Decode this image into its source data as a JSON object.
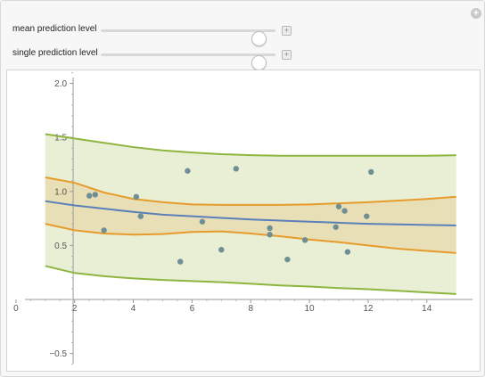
{
  "controls": {
    "mean": {
      "label": "mean prediction level",
      "value": 0.9
    },
    "single": {
      "label": "single prediction level",
      "value": 0.9
    },
    "plus_symbol": "+"
  },
  "colors": {
    "single_band": "#8db53f",
    "single_fill": "#e8efd5",
    "mean_band": "#e69b2c",
    "mean_fill": "#e9dfb6",
    "fit_line": "#5b7fb8",
    "points": "#6f8f94"
  },
  "chart_data": {
    "type": "scatter",
    "title": "",
    "xlabel": "",
    "ylabel": "",
    "xlim": [
      -0.3,
      15.8
    ],
    "ylim": [
      -0.66,
      2.12
    ],
    "x_ticks": [
      0,
      2,
      4,
      6,
      8,
      10,
      12,
      14
    ],
    "y_ticks": [
      -0.5,
      0.5,
      1.0,
      1.5,
      2.0
    ],
    "x_tick_labels": [
      "0",
      "2",
      "4",
      "6",
      "8",
      "10",
      "12",
      "14"
    ],
    "y_tick_labels": [
      "−0.5",
      "0.5",
      "1.0",
      "1.5",
      "2.0"
    ],
    "grid": false,
    "points": [
      {
        "x": 2.5,
        "y": 0.96
      },
      {
        "x": 2.7,
        "y": 0.97
      },
      {
        "x": 3.0,
        "y": 0.64
      },
      {
        "x": 4.1,
        "y": 0.95
      },
      {
        "x": 4.25,
        "y": 0.77
      },
      {
        "x": 5.6,
        "y": 0.35
      },
      {
        "x": 5.85,
        "y": 1.19
      },
      {
        "x": 6.35,
        "y": 0.72
      },
      {
        "x": 7.0,
        "y": 0.46
      },
      {
        "x": 7.5,
        "y": 1.21
      },
      {
        "x": 8.65,
        "y": 0.66
      },
      {
        "x": 8.65,
        "y": 0.6
      },
      {
        "x": 9.25,
        "y": 0.37
      },
      {
        "x": 9.85,
        "y": 0.55
      },
      {
        "x": 10.9,
        "y": 0.67
      },
      {
        "x": 11.0,
        "y": 0.86
      },
      {
        "x": 11.2,
        "y": 0.82
      },
      {
        "x": 11.3,
        "y": 0.44
      },
      {
        "x": 11.95,
        "y": 0.77
      },
      {
        "x": 12.1,
        "y": 1.18
      }
    ],
    "fit_line": {
      "x": [
        1,
        2,
        3,
        4,
        5,
        6,
        7,
        8,
        9,
        10,
        11,
        12,
        13,
        14,
        15
      ],
      "y": [
        0.91,
        0.87,
        0.84,
        0.81,
        0.785,
        0.77,
        0.755,
        0.74,
        0.73,
        0.72,
        0.71,
        0.7,
        0.695,
        0.69,
        0.685
      ]
    },
    "mean_band": {
      "x": [
        1,
        2,
        3,
        4,
        5,
        6,
        7,
        8,
        9,
        10,
        11,
        12,
        13,
        14,
        15
      ],
      "upper": [
        1.13,
        1.08,
        0.99,
        0.93,
        0.9,
        0.88,
        0.875,
        0.875,
        0.875,
        0.88,
        0.89,
        0.9,
        0.915,
        0.93,
        0.95
      ],
      "lower": [
        0.7,
        0.64,
        0.61,
        0.6,
        0.605,
        0.625,
        0.63,
        0.61,
        0.585,
        0.555,
        0.53,
        0.5,
        0.47,
        0.45,
        0.43
      ]
    },
    "single_band": {
      "x": [
        1,
        2,
        3,
        4,
        5,
        6,
        7,
        8,
        9,
        10,
        11,
        12,
        13,
        14,
        15
      ],
      "upper": [
        1.53,
        1.49,
        1.45,
        1.41,
        1.38,
        1.36,
        1.345,
        1.335,
        1.33,
        1.33,
        1.33,
        1.33,
        1.33,
        1.33,
        1.335
      ],
      "lower": [
        0.31,
        0.245,
        0.215,
        0.195,
        0.18,
        0.17,
        0.16,
        0.145,
        0.13,
        0.12,
        0.105,
        0.095,
        0.08,
        0.065,
        0.05
      ]
    }
  }
}
